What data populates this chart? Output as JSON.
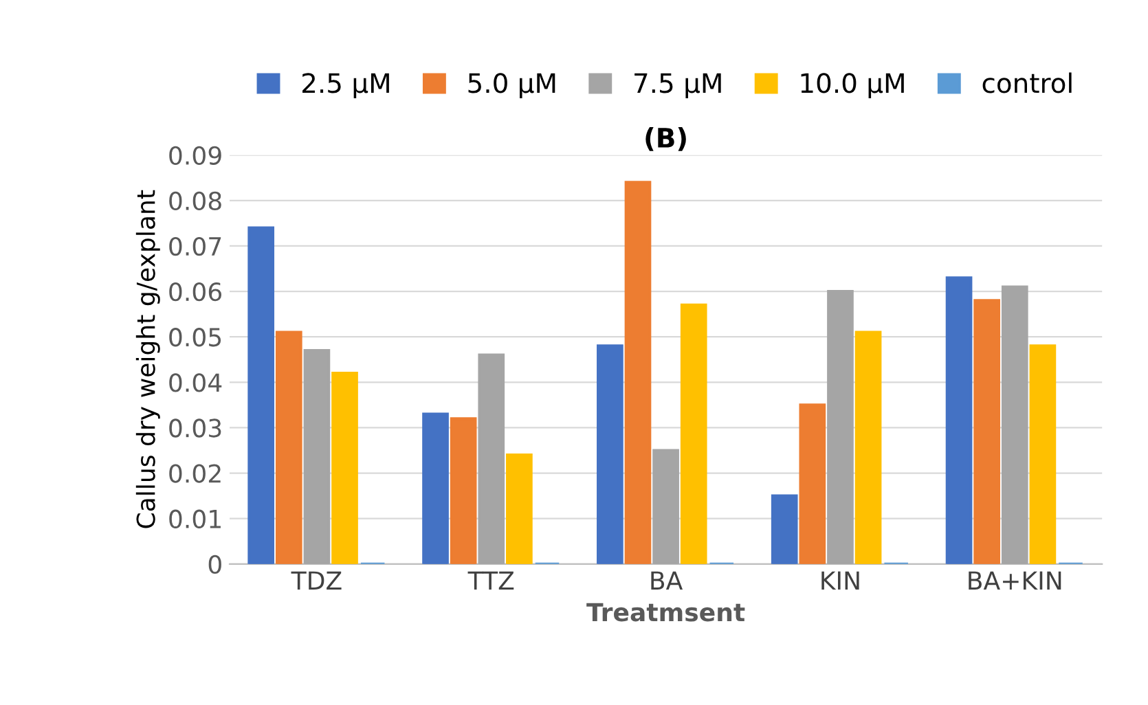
{
  "chart_data": {
    "type": "bar",
    "title": "(B)",
    "xlabel": "Treatmsent",
    "ylabel": "Callus dry weight g/explant",
    "categories": [
      "TDZ",
      "TTZ",
      "BA",
      "KIN",
      "BA+KIN"
    ],
    "series": [
      {
        "name": "2.5 µM",
        "color": "#4472c4",
        "values": [
          0.074,
          0.033,
          0.048,
          0.015,
          0.063
        ]
      },
      {
        "name": "5.0 µM",
        "color": "#ed7d31",
        "values": [
          0.051,
          0.032,
          0.084,
          0.035,
          0.058
        ]
      },
      {
        "name": "7.5 µM",
        "color": "#a5a5a5",
        "values": [
          0.047,
          0.046,
          0.025,
          0.06,
          0.061
        ]
      },
      {
        "name": "10.0 µM",
        "color": "#ffc000",
        "values": [
          0.042,
          0.024,
          0.057,
          0.051,
          0.048
        ]
      },
      {
        "name": "control",
        "color": "#5b9bd5",
        "values": [
          0,
          0,
          0,
          0,
          0
        ]
      }
    ],
    "ylim": [
      0,
      0.09
    ],
    "yticks": [
      0,
      0.01,
      0.02,
      0.03,
      0.04,
      0.05,
      0.06,
      0.07,
      0.08,
      0.09
    ],
    "grid": "y",
    "legend": "top"
  }
}
